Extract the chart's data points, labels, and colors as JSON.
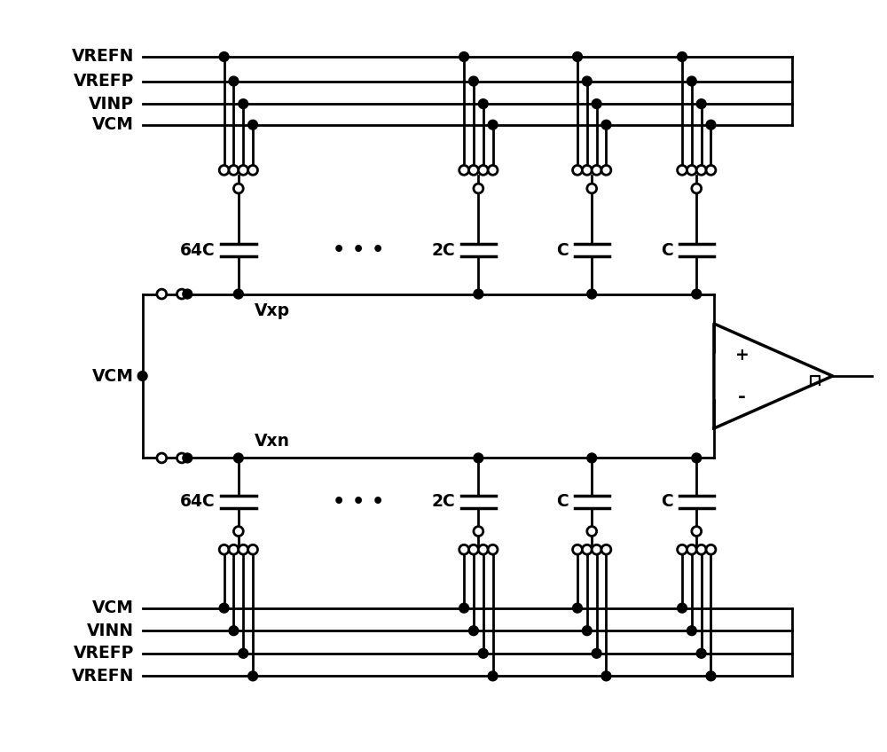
{
  "bg_color": "#ffffff",
  "line_color": "#000000",
  "lw": 2.0,
  "lw_thick": 2.5,
  "dot_r": 0.055,
  "oc_r": 0.055,
  "font_size": 13.5,
  "top_bus_labels": [
    "VREFN",
    "VREFP",
    "VINP",
    "VCM"
  ],
  "bot_bus_labels": [
    "VCM",
    "VINN",
    "VREFP",
    "VREFN"
  ],
  "vcm_label": "VCM",
  "vxp_label": "Vxp",
  "vxn_label": "Vxn",
  "cap_top_labels": [
    "64C",
    "2C",
    "C",
    "C"
  ],
  "cap_bot_labels": [
    "64C",
    "2C",
    "C",
    "C"
  ],
  "comp_plus": "+",
  "comp_minus": "-"
}
